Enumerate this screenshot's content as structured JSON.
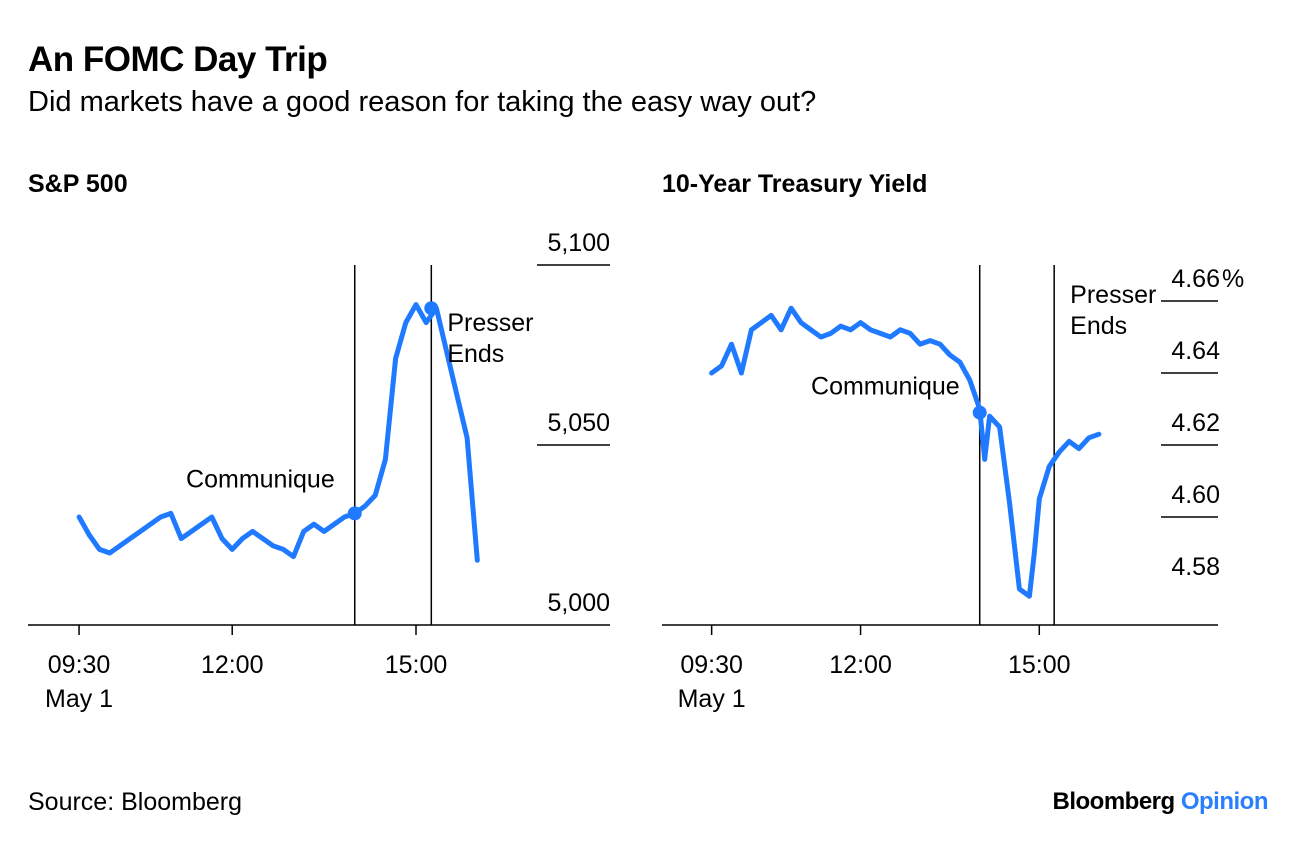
{
  "header": {
    "title": "An FOMC Day Trip",
    "subtitle": "Did markets have a good reason for taking the easy way out?"
  },
  "footer": {
    "source": "Source: Bloomberg",
    "brand_main": "Bloomberg",
    "brand_accent": "Opinion",
    "accent_color": "#2a7fff"
  },
  "chart_data": [
    {
      "type": "line",
      "title": "S&P 500",
      "line_color": "#1f7aff",
      "ylim": [
        5000,
        5100
      ],
      "y_ticks": [
        5000,
        5050,
        5100
      ],
      "y_tick_labels": [
        "5,000",
        "5,050",
        "5,100"
      ],
      "x_ticks": [
        "09:30",
        "12:00",
        "15:00"
      ],
      "x_tick_sub": [
        "May 1",
        "",
        ""
      ],
      "xlim": [
        "08:40",
        "18:10"
      ],
      "events": [
        {
          "time": "14:00",
          "label": "Communique",
          "marker_value": 5031
        },
        {
          "time": "15:15",
          "label": "Presser Ends",
          "marker_value": 5088
        }
      ],
      "series": [
        {
          "x": [
            "09:30",
            "09:40",
            "09:50",
            "10:00",
            "10:10",
            "10:20",
            "10:30",
            "10:40",
            "10:50",
            "11:00",
            "11:10",
            "11:20",
            "11:30",
            "11:40",
            "11:50",
            "12:00",
            "12:10",
            "12:20",
            "12:30",
            "12:40",
            "12:50",
            "13:00",
            "13:10",
            "13:20",
            "13:30",
            "13:40",
            "13:50",
            "14:00",
            "14:10",
            "14:20",
            "14:30",
            "14:40",
            "14:50",
            "15:00",
            "15:10",
            "15:20",
            "15:30",
            "15:40",
            "15:50",
            "16:00"
          ],
          "y": [
            5030,
            5025,
            5021,
            5020,
            5022,
            5024,
            5026,
            5028,
            5030,
            5031,
            5024,
            5026,
            5028,
            5030,
            5024,
            5021,
            5024,
            5026,
            5024,
            5022,
            5021,
            5019,
            5026,
            5028,
            5026,
            5028,
            5030,
            5031,
            5033,
            5036,
            5046,
            5074,
            5084,
            5089,
            5084,
            5088,
            5076,
            5064,
            5052,
            5018
          ]
        }
      ]
    },
    {
      "type": "line",
      "title": "10-Year Treasury Yield",
      "line_color": "#1f7aff",
      "ylim": [
        4.57,
        4.67
      ],
      "y_ticks": [
        4.58,
        4.6,
        4.62,
        4.64,
        4.66
      ],
      "y_tick_labels": [
        "4.58",
        "4.60",
        "4.62",
        "4.64",
        "4.66"
      ],
      "y_unit": "%",
      "x_ticks": [
        "09:30",
        "12:00",
        "15:00"
      ],
      "x_tick_sub": [
        "May 1",
        "",
        ""
      ],
      "xlim": [
        "08:40",
        "18:00"
      ],
      "events": [
        {
          "time": "14:00",
          "label": "Communique",
          "marker_value": 4.629
        },
        {
          "time": "15:15",
          "label": "Presser Ends",
          "marker_value": null
        }
      ],
      "series": [
        {
          "x": [
            "09:30",
            "09:40",
            "09:50",
            "10:00",
            "10:10",
            "10:20",
            "10:30",
            "10:40",
            "10:50",
            "11:00",
            "11:10",
            "11:20",
            "11:30",
            "11:40",
            "11:50",
            "12:00",
            "12:10",
            "12:20",
            "12:30",
            "12:40",
            "12:50",
            "13:00",
            "13:10",
            "13:20",
            "13:30",
            "13:40",
            "13:50",
            "14:00",
            "14:05",
            "14:10",
            "14:20",
            "14:30",
            "14:40",
            "14:50",
            "14:55",
            "15:00",
            "15:10",
            "15:20",
            "15:30",
            "15:40",
            "15:50",
            "16:00"
          ],
          "y": [
            4.64,
            4.642,
            4.648,
            4.64,
            4.652,
            4.654,
            4.656,
            4.652,
            4.658,
            4.654,
            4.652,
            4.65,
            4.651,
            4.653,
            4.652,
            4.654,
            4.652,
            4.651,
            4.65,
            4.652,
            4.651,
            4.648,
            4.649,
            4.648,
            4.645,
            4.643,
            4.638,
            4.63,
            4.616,
            4.628,
            4.625,
            4.604,
            4.58,
            4.578,
            4.59,
            4.605,
            4.614,
            4.618,
            4.621,
            4.619,
            4.622,
            4.623
          ]
        }
      ]
    }
  ]
}
